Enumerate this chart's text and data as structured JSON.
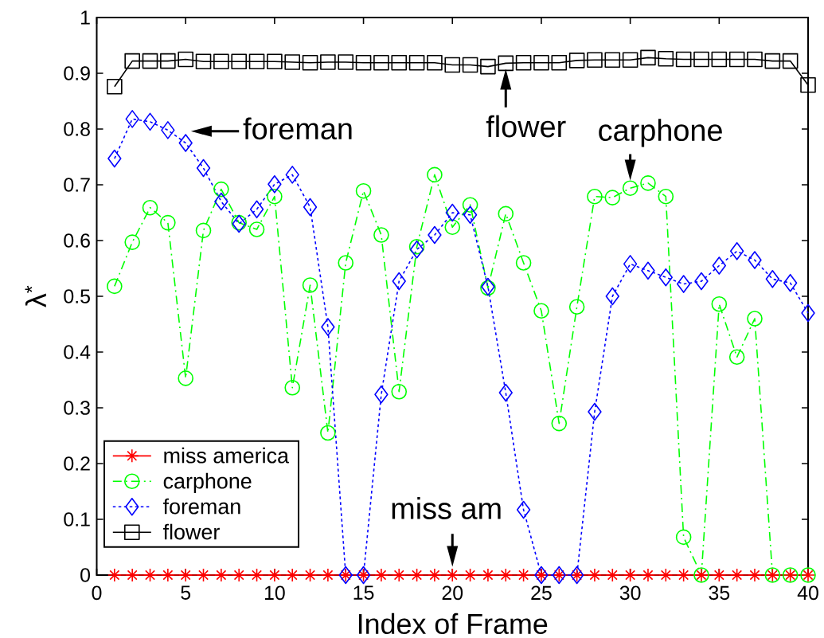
{
  "chart_data": {
    "type": "line",
    "xlabel": "Index of Frame",
    "ylabel": "λ$^{*}$",
    "x": [
      1,
      2,
      3,
      4,
      5,
      6,
      7,
      8,
      9,
      10,
      11,
      12,
      13,
      14,
      15,
      16,
      17,
      18,
      19,
      20,
      21,
      22,
      23,
      24,
      25,
      26,
      27,
      28,
      29,
      30,
      31,
      32,
      33,
      34,
      35,
      36,
      37,
      38,
      39,
      40
    ],
    "xlim": [
      0,
      40
    ],
    "xticks": [
      0,
      5,
      10,
      15,
      20,
      25,
      30,
      35,
      40
    ],
    "ylim": [
      0,
      1
    ],
    "yticks": [
      0,
      0.1,
      0.2,
      0.3,
      0.4,
      0.5,
      0.6,
      0.7,
      0.8,
      0.9,
      1
    ],
    "legend": "bottom left",
    "series": [
      {
        "name": "miss america",
        "color": "#ff0000",
        "marker": "cross",
        "line_style": "solid",
        "values": [
          0,
          0,
          0,
          0,
          0,
          0,
          0,
          0,
          0,
          0,
          0,
          0,
          0,
          0,
          0,
          0,
          0,
          0,
          0,
          0,
          0,
          0,
          0,
          0,
          0,
          0,
          0,
          0,
          0,
          0,
          0,
          0,
          0,
          0,
          0,
          0,
          0,
          0,
          0,
          0
        ]
      },
      {
        "name": "carphone",
        "color": "#00ff00",
        "marker": "circle",
        "line_style": "dashdot",
        "values": [
          0.518,
          0.597,
          0.659,
          0.632,
          0.353,
          0.618,
          0.692,
          0.632,
          0.62,
          0.679,
          0.336,
          0.52,
          0.255,
          0.56,
          0.689,
          0.61,
          0.329,
          0.589,
          0.718,
          0.624,
          0.664,
          0.515,
          0.648,
          0.56,
          0.474,
          0.272,
          0.481,
          0.679,
          0.677,
          0.694,
          0.703,
          0.679,
          0.068,
          0,
          0.486,
          0.391,
          0.46,
          0,
          0,
          0
        ]
      },
      {
        "name": "foreman",
        "color": "#0000ff",
        "marker": "diamond",
        "line_style": "dotted",
        "values": [
          0.747,
          0.818,
          0.813,
          0.798,
          0.775,
          0.73,
          0.67,
          0.63,
          0.656,
          0.701,
          0.718,
          0.66,
          0.445,
          0,
          0,
          0.324,
          0.527,
          0.584,
          0.61,
          0.65,
          0.646,
          0.517,
          0.327,
          0.117,
          0,
          0,
          0,
          0.293,
          0.5,
          0.558,
          0.546,
          0.534,
          0.522,
          0.527,
          0.555,
          0.581,
          0.565,
          0.531,
          0.524,
          0.47
        ]
      },
      {
        "name": "flower",
        "color": "#000000",
        "marker": "square",
        "line_style": "solid",
        "values": [
          0.876,
          0.922,
          0.922,
          0.922,
          0.925,
          0.921,
          0.921,
          0.921,
          0.921,
          0.921,
          0.92,
          0.919,
          0.92,
          0.92,
          0.919,
          0.919,
          0.919,
          0.919,
          0.919,
          0.915,
          0.915,
          0.912,
          0.918,
          0.919,
          0.919,
          0.919,
          0.923,
          0.924,
          0.924,
          0.924,
          0.928,
          0.926,
          0.925,
          0.925,
          0.925,
          0.925,
          0.925,
          0.922,
          0.922,
          0.879
        ]
      }
    ],
    "annotations": [
      {
        "text": "foreman",
        "x": 5,
        "y": 0.775
      },
      {
        "text": "flower",
        "x": 23,
        "y": 0.918
      },
      {
        "text": "carphone",
        "x": 30,
        "y": 0.694
      },
      {
        "text": "miss am",
        "x": 20,
        "y": 0
      }
    ]
  }
}
